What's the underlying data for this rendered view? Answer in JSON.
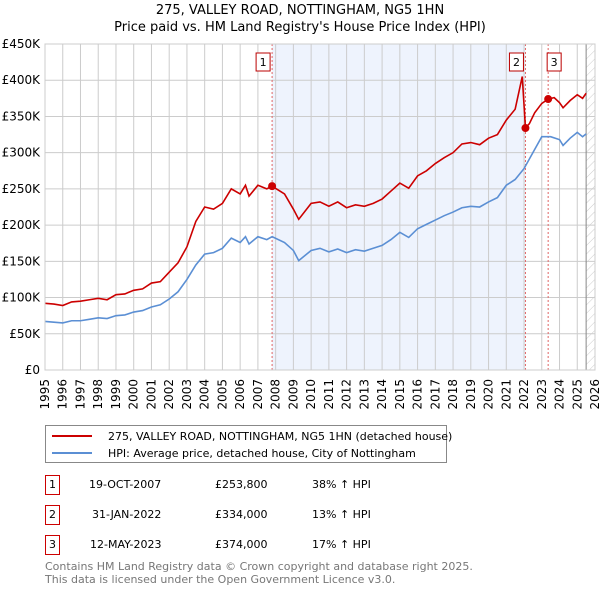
{
  "chart_data": {
    "type": "line",
    "title": "275, VALLEY ROAD, NOTTINGHAM, NG5 1HN",
    "subtitle": "Price paid vs. HM Land Registry's House Price Index (HPI)",
    "xlabel": "",
    "ylabel": "",
    "xlim": [
      1995,
      2026
    ],
    "ylim": [
      0,
      450000
    ],
    "x_ticks": [
      "1995",
      "1996",
      "1997",
      "1998",
      "1999",
      "2000",
      "2001",
      "2002",
      "2003",
      "2004",
      "2005",
      "2006",
      "2007",
      "2008",
      "2009",
      "2010",
      "2011",
      "2012",
      "2013",
      "2014",
      "2015",
      "2016",
      "2017",
      "2018",
      "2019",
      "2020",
      "2021",
      "2022",
      "2023",
      "2024",
      "2025",
      "2026"
    ],
    "y_ticks": [
      {
        "value": 0,
        "label": "£0"
      },
      {
        "value": 50000,
        "label": "£50K"
      },
      {
        "value": 100000,
        "label": "£100K"
      },
      {
        "value": 150000,
        "label": "£150K"
      },
      {
        "value": 200000,
        "label": "£200K"
      },
      {
        "value": 250000,
        "label": "£250K"
      },
      {
        "value": 300000,
        "label": "£300K"
      },
      {
        "value": 350000,
        "label": "£350K"
      },
      {
        "value": 400000,
        "label": "£400K"
      },
      {
        "value": 450000,
        "label": "£450K"
      }
    ],
    "grid": true,
    "series": [
      {
        "name": "275, VALLEY ROAD, NOTTINGHAM, NG5 1HN (detached house)",
        "color": "#cc0000",
        "x": [
          1995,
          1995.5,
          1996,
          1996.5,
          1997,
          1997.5,
          1998,
          1998.5,
          1999,
          1999.5,
          2000,
          2000.5,
          2001,
          2001.5,
          2002,
          2002.5,
          2003,
          2003.5,
          2004,
          2004.5,
          2005,
          2005.5,
          2006,
          2006.3,
          2006.5,
          2007,
          2007.5,
          2007.8,
          2008.5,
          2009,
          2009.3,
          2010,
          2010.5,
          2011,
          2011.5,
          2012,
          2012.5,
          2013,
          2013.5,
          2014,
          2014.5,
          2015,
          2015.5,
          2016,
          2016.5,
          2017,
          2017.5,
          2018,
          2018.5,
          2019,
          2019.5,
          2020,
          2020.5,
          2021,
          2021.5,
          2021.9,
          2022.08,
          2022.3,
          2022.6,
          2023,
          2023.36,
          2023.7,
          2024,
          2024.2,
          2024.6,
          2025,
          2025.3,
          2025.5
        ],
        "y": [
          92000,
          91000,
          89000,
          94000,
          95000,
          97000,
          99000,
          97000,
          104000,
          105000,
          110000,
          112000,
          120000,
          122000,
          135000,
          148000,
          170000,
          205000,
          225000,
          222000,
          230000,
          250000,
          243000,
          255000,
          240000,
          255000,
          250000,
          253800,
          243000,
          222000,
          208000,
          230000,
          232000,
          226000,
          232000,
          224000,
          228000,
          226000,
          230000,
          236000,
          247000,
          258000,
          251000,
          268000,
          275000,
          285000,
          293000,
          300000,
          312000,
          314000,
          311000,
          320000,
          325000,
          345000,
          360000,
          405000,
          334000,
          340000,
          355000,
          368000,
          374000,
          376000,
          369000,
          362000,
          372000,
          380000,
          375000,
          382000
        ]
      },
      {
        "name": "HPI: Average price, detached house, City of Nottingham",
        "color": "#5b8fd4",
        "x": [
          1995,
          1995.5,
          1996,
          1996.5,
          1997,
          1997.5,
          1998,
          1998.5,
          1999,
          1999.5,
          2000,
          2000.5,
          2001,
          2001.5,
          2002,
          2002.5,
          2003,
          2003.5,
          2004,
          2004.5,
          2005,
          2005.5,
          2006,
          2006.3,
          2006.5,
          2007,
          2007.5,
          2007.8,
          2008.5,
          2009,
          2009.3,
          2010,
          2010.5,
          2011,
          2011.5,
          2012,
          2012.5,
          2013,
          2013.5,
          2014,
          2014.5,
          2015,
          2015.5,
          2016,
          2016.5,
          2017,
          2017.5,
          2018,
          2018.5,
          2019,
          2019.5,
          2020,
          2020.5,
          2021,
          2021.5,
          2022,
          2022.5,
          2023,
          2023.5,
          2024,
          2024.2,
          2024.6,
          2025,
          2025.3,
          2025.5
        ],
        "y": [
          67000,
          66000,
          65000,
          68000,
          68000,
          70000,
          72000,
          71000,
          75000,
          76000,
          80000,
          82000,
          87000,
          90000,
          98000,
          108000,
          125000,
          145000,
          160000,
          162000,
          168000,
          182000,
          176000,
          184000,
          174000,
          184000,
          180000,
          184000,
          176000,
          165000,
          151000,
          165000,
          168000,
          163000,
          167000,
          162000,
          166000,
          164000,
          168000,
          172000,
          180000,
          190000,
          183000,
          195000,
          201000,
          207000,
          213000,
          218000,
          224000,
          226000,
          225000,
          232000,
          238000,
          255000,
          263000,
          278000,
          300000,
          322000,
          322000,
          318000,
          310000,
          320000,
          328000,
          322000,
          326000
        ]
      }
    ],
    "sales": [
      {
        "id": "1",
        "x": 2007.8,
        "y": 253800
      },
      {
        "id": "2",
        "x": 2022.08,
        "y": 334000
      },
      {
        "id": "3",
        "x": 2023.36,
        "y": 374000
      }
    ],
    "legend_position": "bottom"
  },
  "table": [
    {
      "id": "1",
      "date": "19-OCT-2007",
      "price": "£253,800",
      "hpi": "38% ↑ HPI"
    },
    {
      "id": "2",
      "date": "31-JAN-2022",
      "price": "£334,000",
      "hpi": "13% ↑ HPI"
    },
    {
      "id": "3",
      "date": "12-MAY-2023",
      "price": "£374,000",
      "hpi": "17% ↑ HPI"
    }
  ],
  "footer": {
    "line1": "Contains HM Land Registry data © Crown copyright and database right 2025.",
    "line2": "This data is licensed under the Open Government Licence v3.0."
  }
}
